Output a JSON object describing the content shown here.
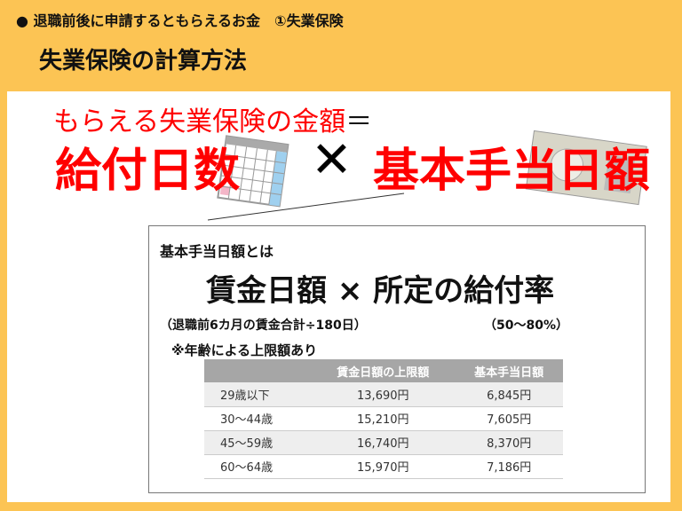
{
  "header": {
    "subtitle": "● 退職前後に申請するともらえるお金　①失業保険",
    "title": "失業保険の計算方法"
  },
  "equation": {
    "lhs": "もらえる失業保険の金額",
    "equals": "＝",
    "term1": "給付日数",
    "times": "✕",
    "term2": "基本手当日額"
  },
  "box": {
    "heading": "基本手当日額とは",
    "formula": "賃金日額 ×  所定の給付率",
    "note_wage": "（退職前6カ月の賃金合計÷180日）",
    "note_rate": "（50〜80%）",
    "note_age": "※年齢による上限額あり"
  },
  "table": {
    "headers": [
      "",
      "賃金日額の上限額",
      "基本手当日額"
    ],
    "rows": [
      [
        "29歳以下",
        "13,690円",
        "6,845円"
      ],
      [
        "30〜44歳",
        "15,210円",
        "7,605円"
      ],
      [
        "45〜59歳",
        "16,740円",
        "8,370円"
      ],
      [
        "60〜64歳",
        "15,970円",
        "7,186円"
      ]
    ]
  },
  "colors": {
    "background": "#FCC454",
    "accent": "#FF0000"
  }
}
